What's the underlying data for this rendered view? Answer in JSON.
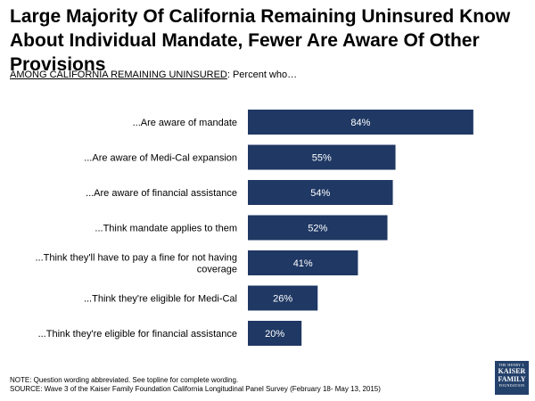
{
  "title": "Large Majority Of California Remaining Uninsured Know About Individual Mandate, Fewer Are Aware Of Other Provisions",
  "subtitle": {
    "underlined": "AMONG CALIFORNIA REMAINING UNINSURED",
    "rest": ": Percent who…"
  },
  "chart_data": {
    "type": "bar",
    "orientation": "horizontal",
    "categories": [
      [
        "...Are aware of mandate"
      ],
      [
        "...Are aware of Medi-Cal expansion"
      ],
      [
        "...Are aware of financial assistance"
      ],
      [
        "...Think mandate applies to them"
      ],
      [
        "...Think they'll have to pay a fine for not having",
        "coverage"
      ],
      [
        "...Think they're eligible for Medi-Cal"
      ],
      [
        "...Think they're eligible for financial assistance"
      ]
    ],
    "values": [
      84,
      55,
      54,
      52,
      41,
      26,
      20
    ],
    "value_labels": [
      "84%",
      "55%",
      "54%",
      "52%",
      "41%",
      "26%",
      "20%"
    ],
    "bar_color": "#1f3864",
    "xlim": [
      0,
      100
    ],
    "grid": false,
    "legend": "none"
  },
  "footer": {
    "note": "NOTE: Question wording abbreviated. See topline for complete wording.",
    "source": "SOURCE: Wave 3 of the Kaiser Family Foundation California Longitudinal Panel Survey (February 18- May 13, 2015)"
  },
  "logo": {
    "line1": "THE HENRY J.",
    "line2a": "KAISER",
    "line2b": "FAMILY",
    "line3": "FOUNDATION"
  }
}
